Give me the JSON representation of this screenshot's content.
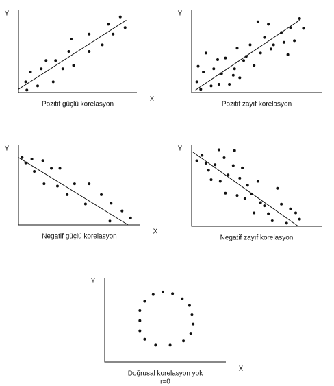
{
  "chart_data": [
    {
      "type": "scatter",
      "title": "Pozitif güçlü korelasyon",
      "x_label": "X",
      "y_label": "Y",
      "color": "#111111",
      "x": [
        7,
        6,
        10,
        16,
        19,
        23,
        29,
        31,
        37,
        42,
        44,
        46,
        59,
        59,
        70,
        75,
        79,
        85,
        89
      ],
      "y": [
        3,
        13,
        25,
        8,
        29,
        39,
        13,
        39,
        29,
        50,
        65,
        33,
        71,
        50,
        58,
        83,
        71,
        92,
        79
      ],
      "trendline": {
        "x": [
          0,
          90
        ],
        "y": [
          4,
          88
        ]
      },
      "xlim": [
        0,
        100
      ],
      "ylim": [
        0,
        100
      ]
    },
    {
      "type": "scatter",
      "title": "Pozitif zayıf korelasyon",
      "x_label": "X",
      "y_label": "Y",
      "color": "#111111",
      "x": [
        5,
        4,
        7,
        9,
        11,
        15,
        17,
        20,
        21,
        23,
        26,
        29,
        32,
        33,
        35,
        37,
        40,
        42,
        45,
        48,
        51,
        53,
        56,
        59,
        61,
        63,
        69,
        71,
        74,
        76,
        79,
        83,
        86
      ],
      "y": [
        32,
        13,
        4,
        25,
        48,
        8,
        29,
        40,
        10,
        23,
        42,
        10,
        21,
        29,
        54,
        18,
        39,
        44,
        58,
        33,
        86,
        48,
        67,
        83,
        53,
        58,
        73,
        61,
        46,
        79,
        63,
        90,
        78
      ],
      "trendline": {
        "x": [
          3,
          83
        ],
        "y": [
          3,
          88
        ]
      },
      "xlim": [
        0,
        100
      ],
      "ylim": [
        0,
        100
      ]
    },
    {
      "type": "scatter",
      "title": "Negatif güçlü korelasyon",
      "x_label": "X",
      "y_label": "Y",
      "color": "#111111",
      "x": [
        6,
        3,
        11,
        13,
        20,
        21,
        27,
        32,
        34,
        40,
        46,
        55,
        58,
        68,
        75,
        76,
        85,
        92
      ],
      "y": [
        80,
        87,
        85,
        69,
        83,
        53,
        73,
        50,
        73,
        39,
        53,
        27,
        53,
        39,
        5,
        28,
        18,
        9
      ],
      "trendline": {
        "x": [
          0,
          90
        ],
        "y": [
          87,
          0
        ]
      },
      "xlim": [
        0,
        100
      ],
      "ylim": [
        0,
        100
      ]
    },
    {
      "type": "scatter",
      "title": "Negatif zayıf korelasyon",
      "x_label": "X",
      "y_label": "Y",
      "color": "#111111",
      "x": [
        4,
        8,
        11,
        13,
        15,
        18,
        21,
        22,
        25,
        26,
        28,
        32,
        33,
        35,
        37,
        39,
        41,
        43,
        46,
        48,
        51,
        53,
        56,
        59,
        62,
        66,
        69,
        73,
        76,
        80,
        83
      ],
      "y": [
        83,
        90,
        80,
        71,
        59,
        78,
        97,
        57,
        87,
        42,
        65,
        77,
        96,
        39,
        61,
        74,
        35,
        52,
        41,
        17,
        57,
        30,
        26,
        16,
        7,
        48,
        28,
        4,
        22,
        17,
        9
      ],
      "trendline": {
        "x": [
          1,
          82
        ],
        "y": [
          94,
          0
        ]
      },
      "xlim": [
        0,
        100
      ],
      "ylim": [
        0,
        100
      ]
    },
    {
      "type": "scatter",
      "title": "Doğrusal korelasyon yok",
      "subtitle": "r=0",
      "x_label": "X",
      "y_label": "Y",
      "color": "#111111",
      "x": [
        48,
        56,
        40,
        64,
        33,
        70,
        29,
        72,
        29,
        73,
        29,
        71,
        33,
        65,
        42,
        54
      ],
      "y": [
        83,
        81,
        80,
        75,
        72,
        67,
        61,
        56,
        49,
        45,
        37,
        34,
        27,
        25,
        20,
        20
      ],
      "xlim": [
        0,
        100
      ],
      "ylim": [
        0,
        100
      ]
    }
  ]
}
